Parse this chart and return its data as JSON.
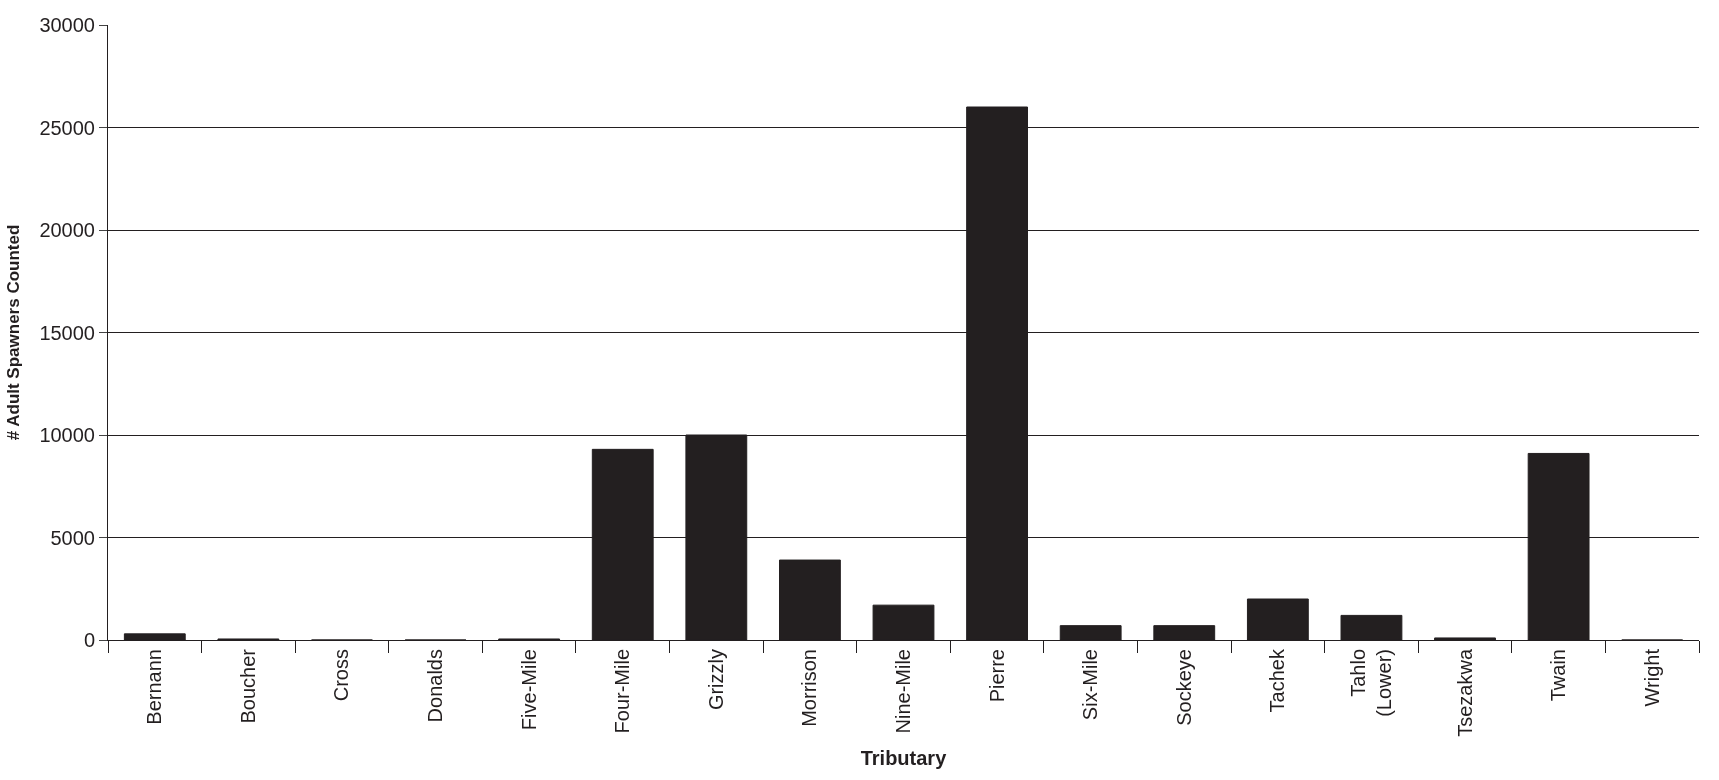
{
  "chart_data": {
    "type": "bar",
    "xlabel": "Tributary",
    "ylabel": "# Adult Spawners Counted",
    "categories": [
      "Bernann",
      "Boucher",
      "Cross",
      "Donalds",
      "Five-Mile",
      "Four-Mile",
      "Grizzly",
      "Morrison",
      "Nine-Mile",
      "Pierre",
      "Six-Mile",
      "Sockeye",
      "Tachek",
      "Tahlo\n(Lower)",
      "Tsezakwa",
      "Twain",
      "Wright"
    ],
    "values": [
      300,
      50,
      0,
      0,
      50,
      9300,
      10000,
      3900,
      1700,
      26000,
      700,
      700,
      2000,
      1200,
      100,
      9100,
      0
    ],
    "color": "#231f20",
    "ylim": [
      0,
      30000
    ],
    "yticks": [
      0,
      5000,
      10000,
      15000,
      20000,
      25000,
      30000
    ],
    "grid": "y"
  }
}
